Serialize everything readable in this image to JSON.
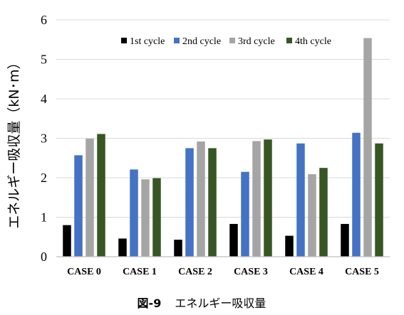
{
  "chart_data": {
    "type": "bar",
    "ylabel": "エネルギー吸収量（kN･m）",
    "ylim": [
      0,
      6
    ],
    "yticks": [
      0,
      1,
      2,
      3,
      4,
      5,
      6
    ],
    "grid": "horizontal major gridlines",
    "legend_position": "top",
    "categories": [
      "CASE 0",
      "CASE 1",
      "CASE 2",
      "CASE 3",
      "CASE 4",
      "CASE 5"
    ],
    "series": [
      {
        "name": "1st cycle",
        "color": "#000000",
        "values": [
          0.8,
          0.46,
          0.43,
          0.83,
          0.53,
          0.83
        ]
      },
      {
        "name": "2nd cycle",
        "color": "#4472C4",
        "values": [
          2.57,
          2.21,
          2.75,
          2.15,
          2.87,
          3.14
        ]
      },
      {
        "name": "3rd cycle",
        "color": "#A5A5A5",
        "values": [
          2.99,
          1.96,
          2.92,
          2.93,
          2.09,
          5.54
        ]
      },
      {
        "name": "4th cycle",
        "color": "#375623",
        "values": [
          3.11,
          1.99,
          2.75,
          2.97,
          2.25,
          2.87
        ]
      }
    ]
  },
  "caption": {
    "number": "図-9",
    "title": "エネルギー吸収量"
  }
}
